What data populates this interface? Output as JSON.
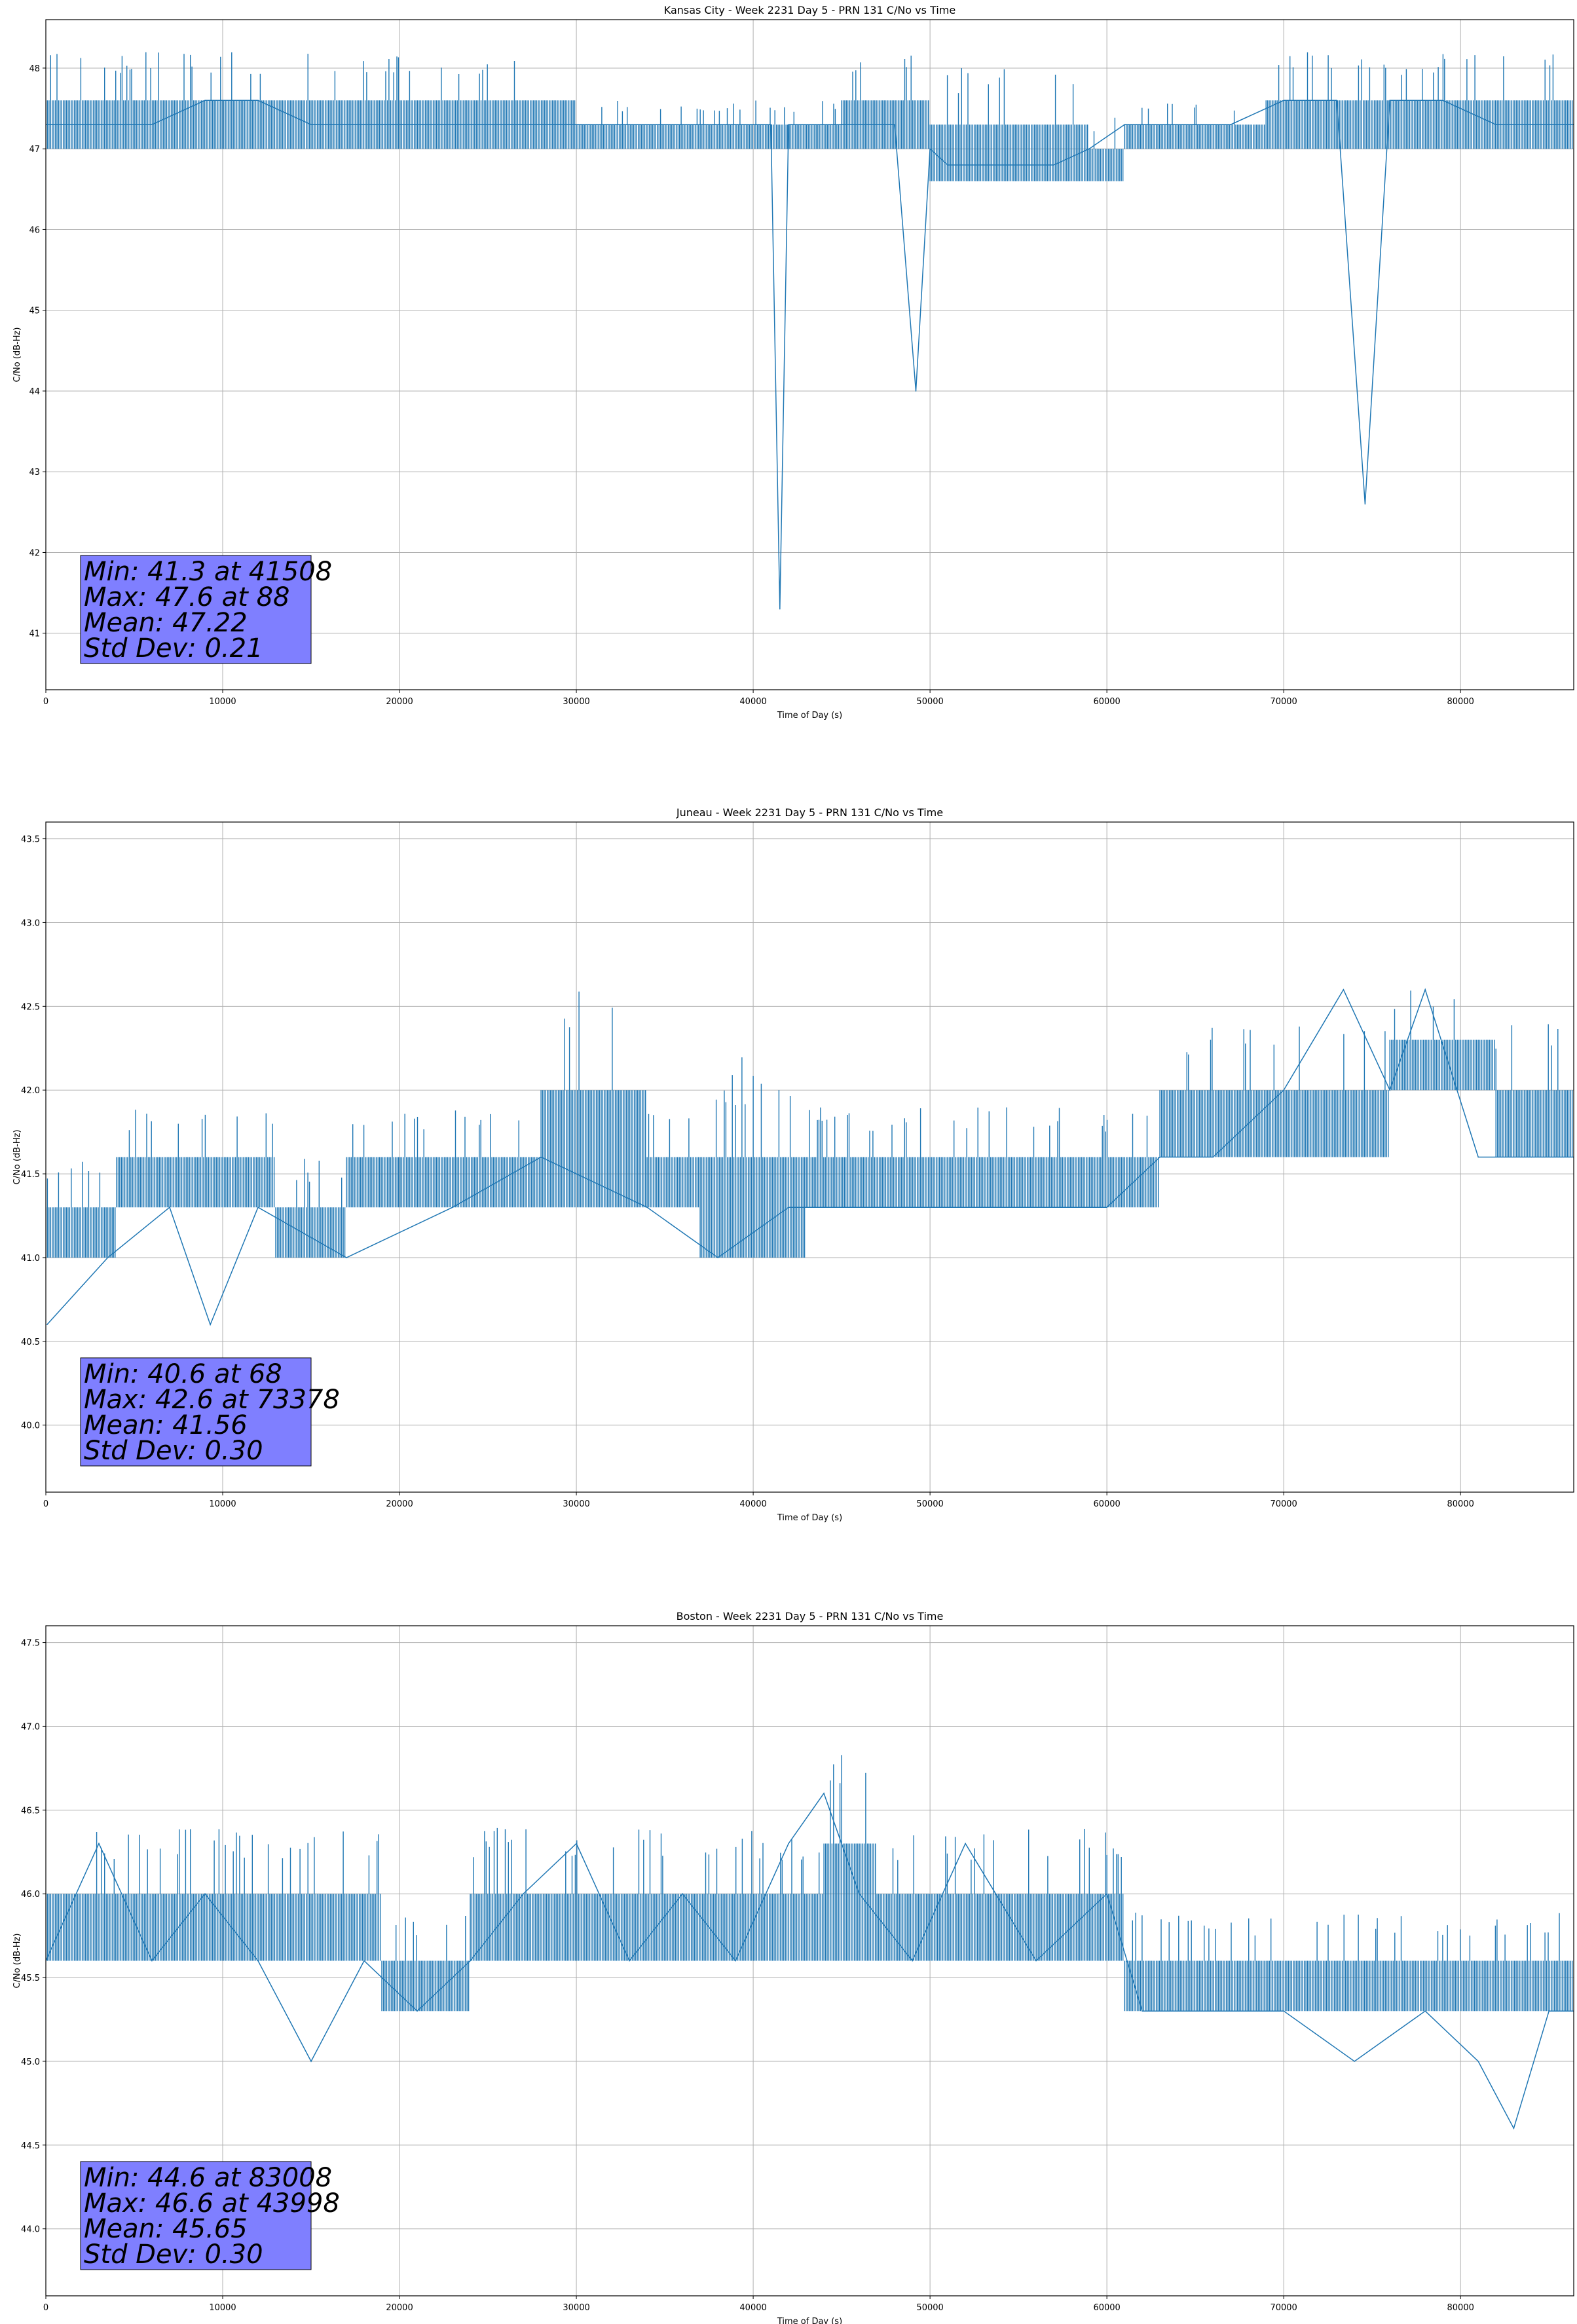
{
  "chart_data": [
    {
      "type": "line",
      "title": "Kansas City - Week 2231 Day 5 - PRN 131 C/No vs Time",
      "xlabel": "Time of Day (s)",
      "ylabel": "C/No (dB-Hz)",
      "xlim": [
        0,
        86400
      ],
      "ylim": [
        40.3,
        48.6
      ],
      "grid": true,
      "color": "#1f77b4",
      "xticks": [
        0,
        10000,
        20000,
        30000,
        40000,
        50000,
        60000,
        70000,
        80000
      ],
      "yticks": [
        41,
        42,
        43,
        44,
        45,
        46,
        47,
        48
      ],
      "ytick_labels": [
        "41",
        "42",
        "43",
        "44",
        "45",
        "46",
        "47",
        "48"
      ],
      "series": [
        {
          "x": [
            0,
            3000,
            6000,
            9000,
            12000,
            15000,
            18000,
            21000,
            24000,
            27000,
            30000,
            33000,
            36000,
            39000,
            41000,
            41508,
            42000,
            45000,
            48000,
            49200,
            50000,
            51000,
            53000,
            55000,
            57000,
            59000,
            61000,
            64000,
            67000,
            70000,
            73000,
            74600,
            76000,
            79000,
            82000,
            85000,
            86400
          ],
          "y": [
            47.3,
            47.3,
            47.3,
            47.6,
            47.6,
            47.3,
            47.3,
            47.3,
            47.3,
            47.3,
            47.3,
            47.3,
            47.3,
            47.3,
            47.3,
            41.3,
            47.3,
            47.3,
            47.3,
            44.0,
            47.0,
            46.8,
            46.8,
            46.8,
            46.8,
            47.0,
            47.3,
            47.3,
            47.3,
            47.6,
            47.6,
            42.6,
            47.6,
            47.6,
            47.3,
            47.3,
            47.3
          ],
          "band_x": [
            0,
            15000,
            30000,
            45000,
            50000,
            55000,
            59000,
            61000,
            69000,
            80000,
            86400
          ],
          "band_low": [
            47.0,
            47.0,
            47.0,
            47.0,
            46.6,
            46.6,
            46.6,
            47.0,
            47.0,
            47.0,
            47.0
          ],
          "band_high": [
            47.6,
            47.6,
            47.3,
            47.6,
            47.3,
            47.3,
            47.0,
            47.3,
            47.6,
            47.6,
            47.3
          ]
        }
      ],
      "stats": [
        "Min: 41.3 at 41508",
        "Max: 47.6 at 88",
        "Mean: 47.22",
        "Std Dev: 0.21"
      ]
    },
    {
      "type": "line",
      "title": "Juneau - Week 2231 Day 5 - PRN 131 C/No vs Time",
      "xlabel": "Time of Day (s)",
      "ylabel": "C/No (dB-Hz)",
      "xlim": [
        0,
        86400
      ],
      "ylim": [
        39.6,
        43.6
      ],
      "grid": true,
      "color": "#1f77b4",
      "xticks": [
        0,
        10000,
        20000,
        30000,
        40000,
        50000,
        60000,
        70000,
        80000
      ],
      "yticks": [
        40.0,
        40.5,
        41.0,
        41.5,
        42.0,
        42.5,
        43.0,
        43.5
      ],
      "ytick_labels": [
        "40.0",
        "40.5",
        "41.0",
        "41.5",
        "42.0",
        "42.5",
        "43.0",
        "43.5"
      ],
      "series": [
        {
          "x": [
            68,
            3500,
            7000,
            9300,
            12000,
            17000,
            23000,
            28000,
            34000,
            38000,
            42000,
            47000,
            54000,
            60000,
            63000,
            66000,
            70000,
            73378,
            76000,
            78000,
            81000,
            84000,
            86400
          ],
          "y": [
            40.6,
            41.0,
            41.3,
            40.6,
            41.3,
            41.0,
            41.3,
            41.6,
            41.3,
            41.0,
            41.3,
            41.3,
            41.3,
            41.3,
            41.6,
            41.6,
            42.0,
            42.6,
            42.0,
            42.6,
            41.6,
            41.6,
            41.6
          ],
          "band_x": [
            0,
            3500,
            4000,
            10000,
            13000,
            17000,
            22000,
            28000,
            34000,
            37000,
            41000,
            43000,
            50000,
            62000,
            63000,
            69000,
            76000,
            80000,
            82000,
            86400
          ],
          "band_low": [
            41.0,
            41.0,
            41.3,
            41.3,
            41.0,
            41.3,
            41.3,
            41.3,
            41.3,
            41.0,
            41.0,
            41.3,
            41.3,
            41.3,
            41.6,
            41.6,
            42.0,
            42.0,
            41.6,
            41.6
          ],
          "band_high": [
            41.3,
            41.3,
            41.6,
            41.6,
            41.3,
            41.6,
            41.6,
            42.0,
            41.6,
            41.6,
            41.6,
            41.6,
            41.6,
            41.6,
            42.0,
            42.0,
            42.3,
            42.3,
            42.0,
            42.0
          ]
        }
      ],
      "stats": [
        "Min: 40.6 at 68",
        "Max: 42.6 at 73378",
        "Mean: 41.56",
        "Std Dev: 0.30"
      ]
    },
    {
      "type": "line",
      "title": "Boston - Week 2231 Day 5 - PRN 131 C/No vs Time",
      "xlabel": "Time of Day (s)",
      "ylabel": "C/No (dB-Hz)",
      "xlim": [
        0,
        86400
      ],
      "ylim": [
        43.6,
        47.6
      ],
      "grid": true,
      "color": "#1f77b4",
      "xticks": [
        0,
        10000,
        20000,
        30000,
        40000,
        50000,
        60000,
        70000,
        80000
      ],
      "yticks": [
        44.0,
        44.5,
        45.0,
        45.5,
        46.0,
        46.5,
        47.0,
        47.5
      ],
      "ytick_labels": [
        "44.0",
        "44.5",
        "45.0",
        "45.5",
        "46.0",
        "46.5",
        "47.0",
        "47.5"
      ],
      "series": [
        {
          "x": [
            0,
            3000,
            6000,
            9000,
            12000,
            15000,
            18000,
            21000,
            24000,
            27000,
            30000,
            33000,
            36000,
            39000,
            42000,
            43998,
            46000,
            49000,
            52000,
            56000,
            60000,
            62000,
            66000,
            70000,
            74000,
            78000,
            81000,
            83008,
            85000,
            86400
          ],
          "y": [
            45.6,
            46.3,
            45.6,
            46.0,
            45.6,
            45.0,
            45.6,
            45.3,
            45.6,
            46.0,
            46.3,
            45.6,
            46.0,
            45.6,
            46.3,
            46.6,
            46.0,
            45.6,
            46.3,
            45.6,
            46.0,
            45.3,
            45.3,
            45.3,
            45.0,
            45.3,
            45.0,
            44.6,
            45.3,
            45.3
          ],
          "band_x": [
            0,
            15000,
            19000,
            24000,
            41000,
            44000,
            47000,
            60000,
            61000,
            70000,
            77000,
            86400
          ],
          "band_low": [
            45.6,
            45.6,
            45.3,
            45.6,
            45.6,
            45.6,
            45.6,
            45.6,
            45.3,
            45.3,
            45.3,
            45.3
          ],
          "band_high": [
            46.0,
            46.0,
            45.6,
            46.0,
            46.0,
            46.3,
            46.0,
            46.0,
            45.6,
            45.6,
            45.6,
            45.6
          ]
        }
      ],
      "stats": [
        "Min: 44.6 at 83008",
        "Max: 46.6 at 43998",
        "Mean: 45.65",
        "Std Dev: 0.30"
      ]
    }
  ]
}
